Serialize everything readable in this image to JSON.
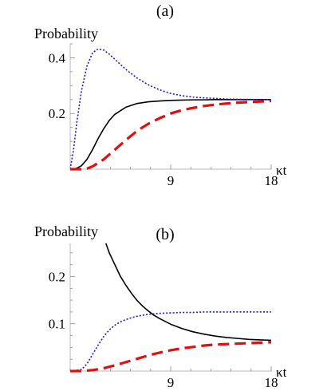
{
  "chart_data": [
    {
      "type": "line",
      "panel_label": "(a)",
      "title": "",
      "ylabel": "Probability",
      "xlabel": "κt",
      "xlim": [
        0,
        18
      ],
      "ylim": [
        0,
        0.45
      ],
      "xticks": [
        9,
        18
      ],
      "yticks": [
        0.2,
        0.4
      ],
      "xtick_labels": [
        "9",
        "18"
      ],
      "ytick_labels": [
        "0.2",
        "0.4"
      ],
      "grid": false,
      "series": [
        {
          "style": "solid",
          "color": "#000000",
          "x": [
            0,
            0.5,
            1,
            1.5,
            2,
            2.5,
            3,
            3.5,
            4,
            5,
            6,
            7,
            8,
            9,
            10,
            11,
            12,
            13,
            14,
            15,
            16,
            17,
            18
          ],
          "y": [
            0,
            0.002,
            0.012,
            0.035,
            0.07,
            0.11,
            0.145,
            0.175,
            0.197,
            0.223,
            0.236,
            0.242,
            0.245,
            0.247,
            0.248,
            0.249,
            0.249,
            0.25,
            0.25,
            0.25,
            0.25,
            0.25,
            0.25
          ]
        },
        {
          "style": "dotted",
          "color": "#1a1ad0",
          "x": [
            0,
            0.3,
            0.6,
            1,
            1.5,
            2,
            2.5,
            3,
            3.5,
            4,
            4.5,
            5,
            6,
            7,
            8,
            9,
            10,
            11,
            12,
            13,
            14,
            15,
            16,
            17,
            18
          ],
          "y": [
            0,
            0.07,
            0.17,
            0.28,
            0.37,
            0.418,
            0.432,
            0.428,
            0.413,
            0.395,
            0.376,
            0.358,
            0.327,
            0.303,
            0.285,
            0.272,
            0.264,
            0.259,
            0.256,
            0.254,
            0.252,
            0.251,
            0.2505,
            0.2502,
            0.25
          ]
        },
        {
          "style": "dashed",
          "color": "#e01010",
          "x": [
            0,
            1,
            1.5,
            2,
            3,
            4,
            5,
            6,
            7,
            8,
            9,
            10,
            11,
            12,
            13,
            14,
            15,
            16,
            17,
            18
          ],
          "y": [
            0,
            0,
            0.002,
            0.01,
            0.035,
            0.07,
            0.105,
            0.138,
            0.163,
            0.183,
            0.2,
            0.212,
            0.22,
            0.227,
            0.232,
            0.236,
            0.239,
            0.241,
            0.243,
            0.245
          ]
        }
      ]
    },
    {
      "type": "line",
      "panel_label": "(b)",
      "title": "",
      "ylabel": "Probability",
      "xlabel": "κt",
      "xlim": [
        0,
        18
      ],
      "ylim": [
        0,
        0.27
      ],
      "xticks": [
        9,
        18
      ],
      "yticks": [
        0.1,
        0.2
      ],
      "xtick_labels": [
        "9",
        "18"
      ],
      "ytick_labels": [
        "0.1",
        "0.2"
      ],
      "grid": false,
      "series": [
        {
          "style": "solid",
          "color": "#000000",
          "x": [
            3.2,
            3.5,
            4,
            4.5,
            5,
            5.5,
            6,
            6.5,
            7,
            7.5,
            8,
            9,
            10,
            11,
            12,
            13,
            14,
            15,
            16,
            17,
            18
          ],
          "y": [
            0.27,
            0.25,
            0.225,
            0.2,
            0.181,
            0.164,
            0.149,
            0.137,
            0.127,
            0.118,
            0.111,
            0.099,
            0.09,
            0.083,
            0.078,
            0.074,
            0.071,
            0.069,
            0.067,
            0.066,
            0.065
          ]
        },
        {
          "style": "dotted",
          "color": "#1a1ad0",
          "x": [
            0,
            1,
            1.5,
            2,
            2.5,
            3,
            3.5,
            4,
            4.5,
            5,
            5.5,
            6,
            7,
            8,
            9,
            10,
            11,
            12,
            13,
            14,
            15,
            16,
            17,
            18
          ],
          "y": [
            0,
            0.003,
            0.015,
            0.035,
            0.055,
            0.073,
            0.087,
            0.097,
            0.104,
            0.109,
            0.113,
            0.116,
            0.12,
            0.122,
            0.123,
            0.124,
            0.124,
            0.125,
            0.125,
            0.125,
            0.125,
            0.125,
            0.125,
            0.125
          ]
        },
        {
          "style": "dashed",
          "color": "#e01010",
          "x": [
            0,
            1,
            2,
            3,
            4,
            5,
            6,
            7,
            8,
            9,
            10,
            11,
            12,
            13,
            14,
            15,
            16,
            17,
            18
          ],
          "y": [
            0,
            0,
            0.002,
            0.006,
            0.012,
            0.019,
            0.026,
            0.033,
            0.039,
            0.044,
            0.048,
            0.051,
            0.054,
            0.056,
            0.057,
            0.058,
            0.059,
            0.06,
            0.061
          ]
        }
      ]
    }
  ]
}
